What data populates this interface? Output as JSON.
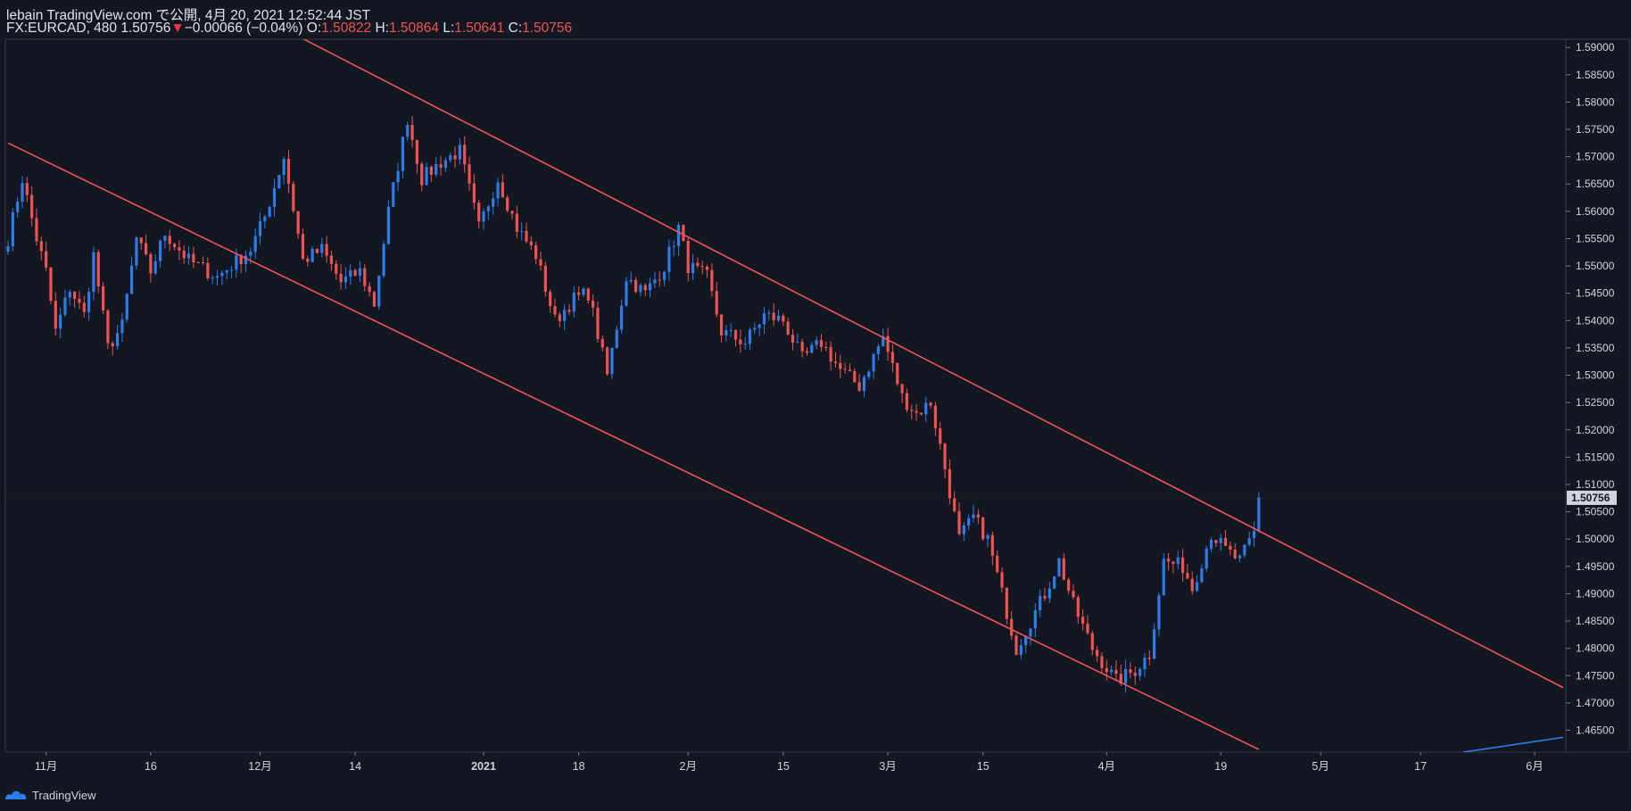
{
  "header": {
    "publish_line": "lebain TradingView.com で公開, 4月 20, 2021 12:52:44 JST",
    "symbol": "FX:EURCAD, 480",
    "last": "1.50756",
    "change_arrow": "▼",
    "change": "−0.00066 (−0.04%)",
    "o_label": "O:",
    "o_value": "1.50822",
    "h_label": "H:",
    "h_value": "1.50864",
    "l_label": "L:",
    "l_value": "1.50641",
    "c_label": "C:",
    "c_value": "1.50756"
  },
  "footer": {
    "brand": "TradingView"
  },
  "colors": {
    "background": "#131722",
    "up": "#2b7de9",
    "down": "#ef5350",
    "trendline": "#f0545a",
    "grid": "#2a2e39",
    "text": "#d1d4dc"
  },
  "chart_data": {
    "type": "candlestick",
    "title": "FX:EURCAD, 480",
    "ylim": [
      1.461,
      1.5915
    ],
    "y_ticks": [
      "1.46500",
      "1.47000",
      "1.47500",
      "1.48000",
      "1.48500",
      "1.49000",
      "1.49500",
      "1.50000",
      "1.50500",
      "1.51000",
      "1.51500",
      "1.52000",
      "1.52500",
      "1.53000",
      "1.53500",
      "1.54000",
      "1.54500",
      "1.55000",
      "1.55500",
      "1.56000",
      "1.56500",
      "1.57000",
      "1.57500",
      "1.58000",
      "1.58500",
      "1.59000"
    ],
    "x_ticks": [
      {
        "label": "11月",
        "i": 8
      },
      {
        "label": "16",
        "i": 30
      },
      {
        "label": "12月",
        "i": 53
      },
      {
        "label": "14",
        "i": 73
      },
      {
        "label": "2021",
        "i": 100
      },
      {
        "label": "18",
        "i": 120
      },
      {
        "label": "2月",
        "i": 143
      },
      {
        "label": "15",
        "i": 163
      },
      {
        "label": "3月",
        "i": 185
      },
      {
        "label": "15",
        "i": 205
      },
      {
        "label": "4月",
        "i": 231
      },
      {
        "label": "19",
        "i": 255
      },
      {
        "label": "5月",
        "i": 276
      },
      {
        "label": "17",
        "i": 297
      },
      {
        "label": "6月",
        "i": 321
      }
    ],
    "x_range": [
      0,
      327
    ],
    "current_price": 1.50756,
    "current_price_label": "1.50756",
    "anchors": [
      [
        0,
        1.555
      ],
      [
        3,
        1.566
      ],
      [
        6,
        1.555
      ],
      [
        8,
        1.549
      ],
      [
        10,
        1.538
      ],
      [
        13,
        1.546
      ],
      [
        16,
        1.541
      ],
      [
        18,
        1.552
      ],
      [
        21,
        1.535
      ],
      [
        24,
        1.539
      ],
      [
        27,
        1.555
      ],
      [
        30,
        1.549
      ],
      [
        33,
        1.556
      ],
      [
        38,
        1.551
      ],
      [
        44,
        1.548
      ],
      [
        51,
        1.553
      ],
      [
        54,
        1.559
      ],
      [
        58,
        1.57
      ],
      [
        62,
        1.551
      ],
      [
        66,
        1.553
      ],
      [
        70,
        1.547
      ],
      [
        74,
        1.549
      ],
      [
        77,
        1.543
      ],
      [
        80,
        1.56
      ],
      [
        84,
        1.577
      ],
      [
        87,
        1.566
      ],
      [
        91,
        1.569
      ],
      [
        95,
        1.571
      ],
      [
        99,
        1.557
      ],
      [
        103,
        1.566
      ],
      [
        107,
        1.557
      ],
      [
        111,
        1.552
      ],
      [
        115,
        1.54
      ],
      [
        119,
        1.544
      ],
      [
        122,
        1.545
      ],
      [
        126,
        1.53
      ],
      [
        130,
        1.548
      ],
      [
        134,
        1.545
      ],
      [
        138,
        1.55
      ],
      [
        141,
        1.557
      ],
      [
        143,
        1.55
      ],
      [
        147,
        1.548
      ],
      [
        150,
        1.538
      ],
      [
        155,
        1.536
      ],
      [
        159,
        1.541
      ],
      [
        163,
        1.54
      ],
      [
        167,
        1.533
      ],
      [
        171,
        1.536
      ],
      [
        175,
        1.531
      ],
      [
        179,
        1.528
      ],
      [
        184,
        1.537
      ],
      [
        188,
        1.526
      ],
      [
        191,
        1.523
      ],
      [
        194,
        1.525
      ],
      [
        197,
        1.513
      ],
      [
        200,
        1.5
      ],
      [
        203,
        1.504
      ],
      [
        206,
        1.5
      ],
      [
        209,
        1.49
      ],
      [
        212,
        1.48
      ],
      [
        215,
        1.485
      ],
      [
        218,
        1.49
      ],
      [
        221,
        1.496
      ],
      [
        224,
        1.488
      ],
      [
        228,
        1.48
      ],
      [
        233,
        1.474
      ],
      [
        237,
        1.476
      ],
      [
        240,
        1.479
      ],
      [
        243,
        1.496
      ],
      [
        247,
        1.495
      ],
      [
        249,
        1.491
      ],
      [
        253,
        1.501
      ],
      [
        256,
        1.498
      ],
      [
        259,
        1.496
      ],
      [
        262,
        1.501
      ],
      [
        263,
        1.5076
      ]
    ],
    "trendlines": [
      {
        "name": "upper-channel-line",
        "from": [
          60,
          1.5925
        ],
        "to": [
          327,
          1.4728
        ]
      },
      {
        "name": "lower-channel-line",
        "from": [
          0,
          1.5725
        ],
        "to": [
          263,
          1.4615
        ]
      },
      {
        "name": "blue-line",
        "from": [
          306,
          1.461
        ],
        "to": [
          327,
          1.4637
        ]
      }
    ]
  }
}
